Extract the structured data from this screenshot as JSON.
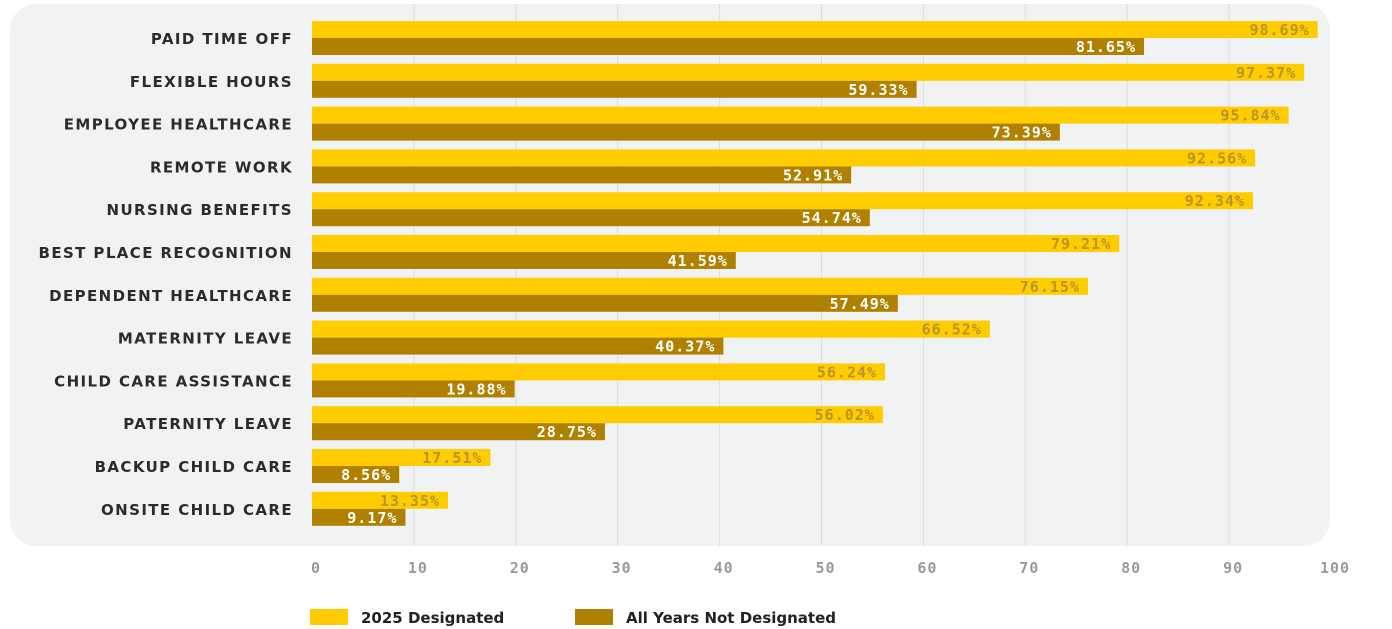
{
  "chart_data": {
    "type": "bar",
    "orientation": "horizontal",
    "categories": [
      "PAID TIME OFF",
      "FLEXIBLE HOURS",
      "EMPLOYEE HEALTHCARE",
      "REMOTE WORK",
      "NURSING BENEFITS",
      "BEST PLACE RECOGNITION",
      "DEPENDENT HEALTHCARE",
      "MATERNITY LEAVE",
      "CHILD CARE ASSISTANCE",
      "PATERNITY LEAVE",
      "BACKUP CHILD CARE",
      "ONSITE CHILD CARE"
    ],
    "series": [
      {
        "name": "2025 Designated",
        "color": "#ffcc00",
        "values": [
          98.69,
          97.37,
          95.84,
          92.56,
          92.34,
          79.21,
          76.15,
          66.52,
          56.24,
          56.02,
          17.51,
          13.35
        ],
        "labels": [
          "98.69%",
          "97.37%",
          "95.84%",
          "92.56%",
          "92.34%",
          "79.21%",
          "76.15%",
          "66.52%",
          "56.24%",
          "56.02%",
          "17.51%",
          "13.35%"
        ]
      },
      {
        "name": "All Years Not Designated",
        "color": "#b08000",
        "values": [
          81.65,
          59.33,
          73.39,
          52.91,
          54.74,
          41.59,
          57.49,
          40.37,
          19.88,
          28.75,
          8.56,
          9.17
        ],
        "labels": [
          "81.65%",
          "59.33%",
          "73.39%",
          "52.91%",
          "54.74%",
          "41.59%",
          "57.49%",
          "40.37%",
          "19.88%",
          "28.75%",
          "8.56%",
          "9.17%"
        ]
      }
    ],
    "xlim": [
      0,
      100
    ],
    "xticks": [
      "0",
      "10",
      "20",
      "30",
      "40",
      "50",
      "60",
      "70",
      "80",
      "90",
      "100"
    ],
    "grid": true,
    "legend_position": "bottom-left",
    "panel_color": "#f1f2f4",
    "grid_color": "#dddddd"
  }
}
